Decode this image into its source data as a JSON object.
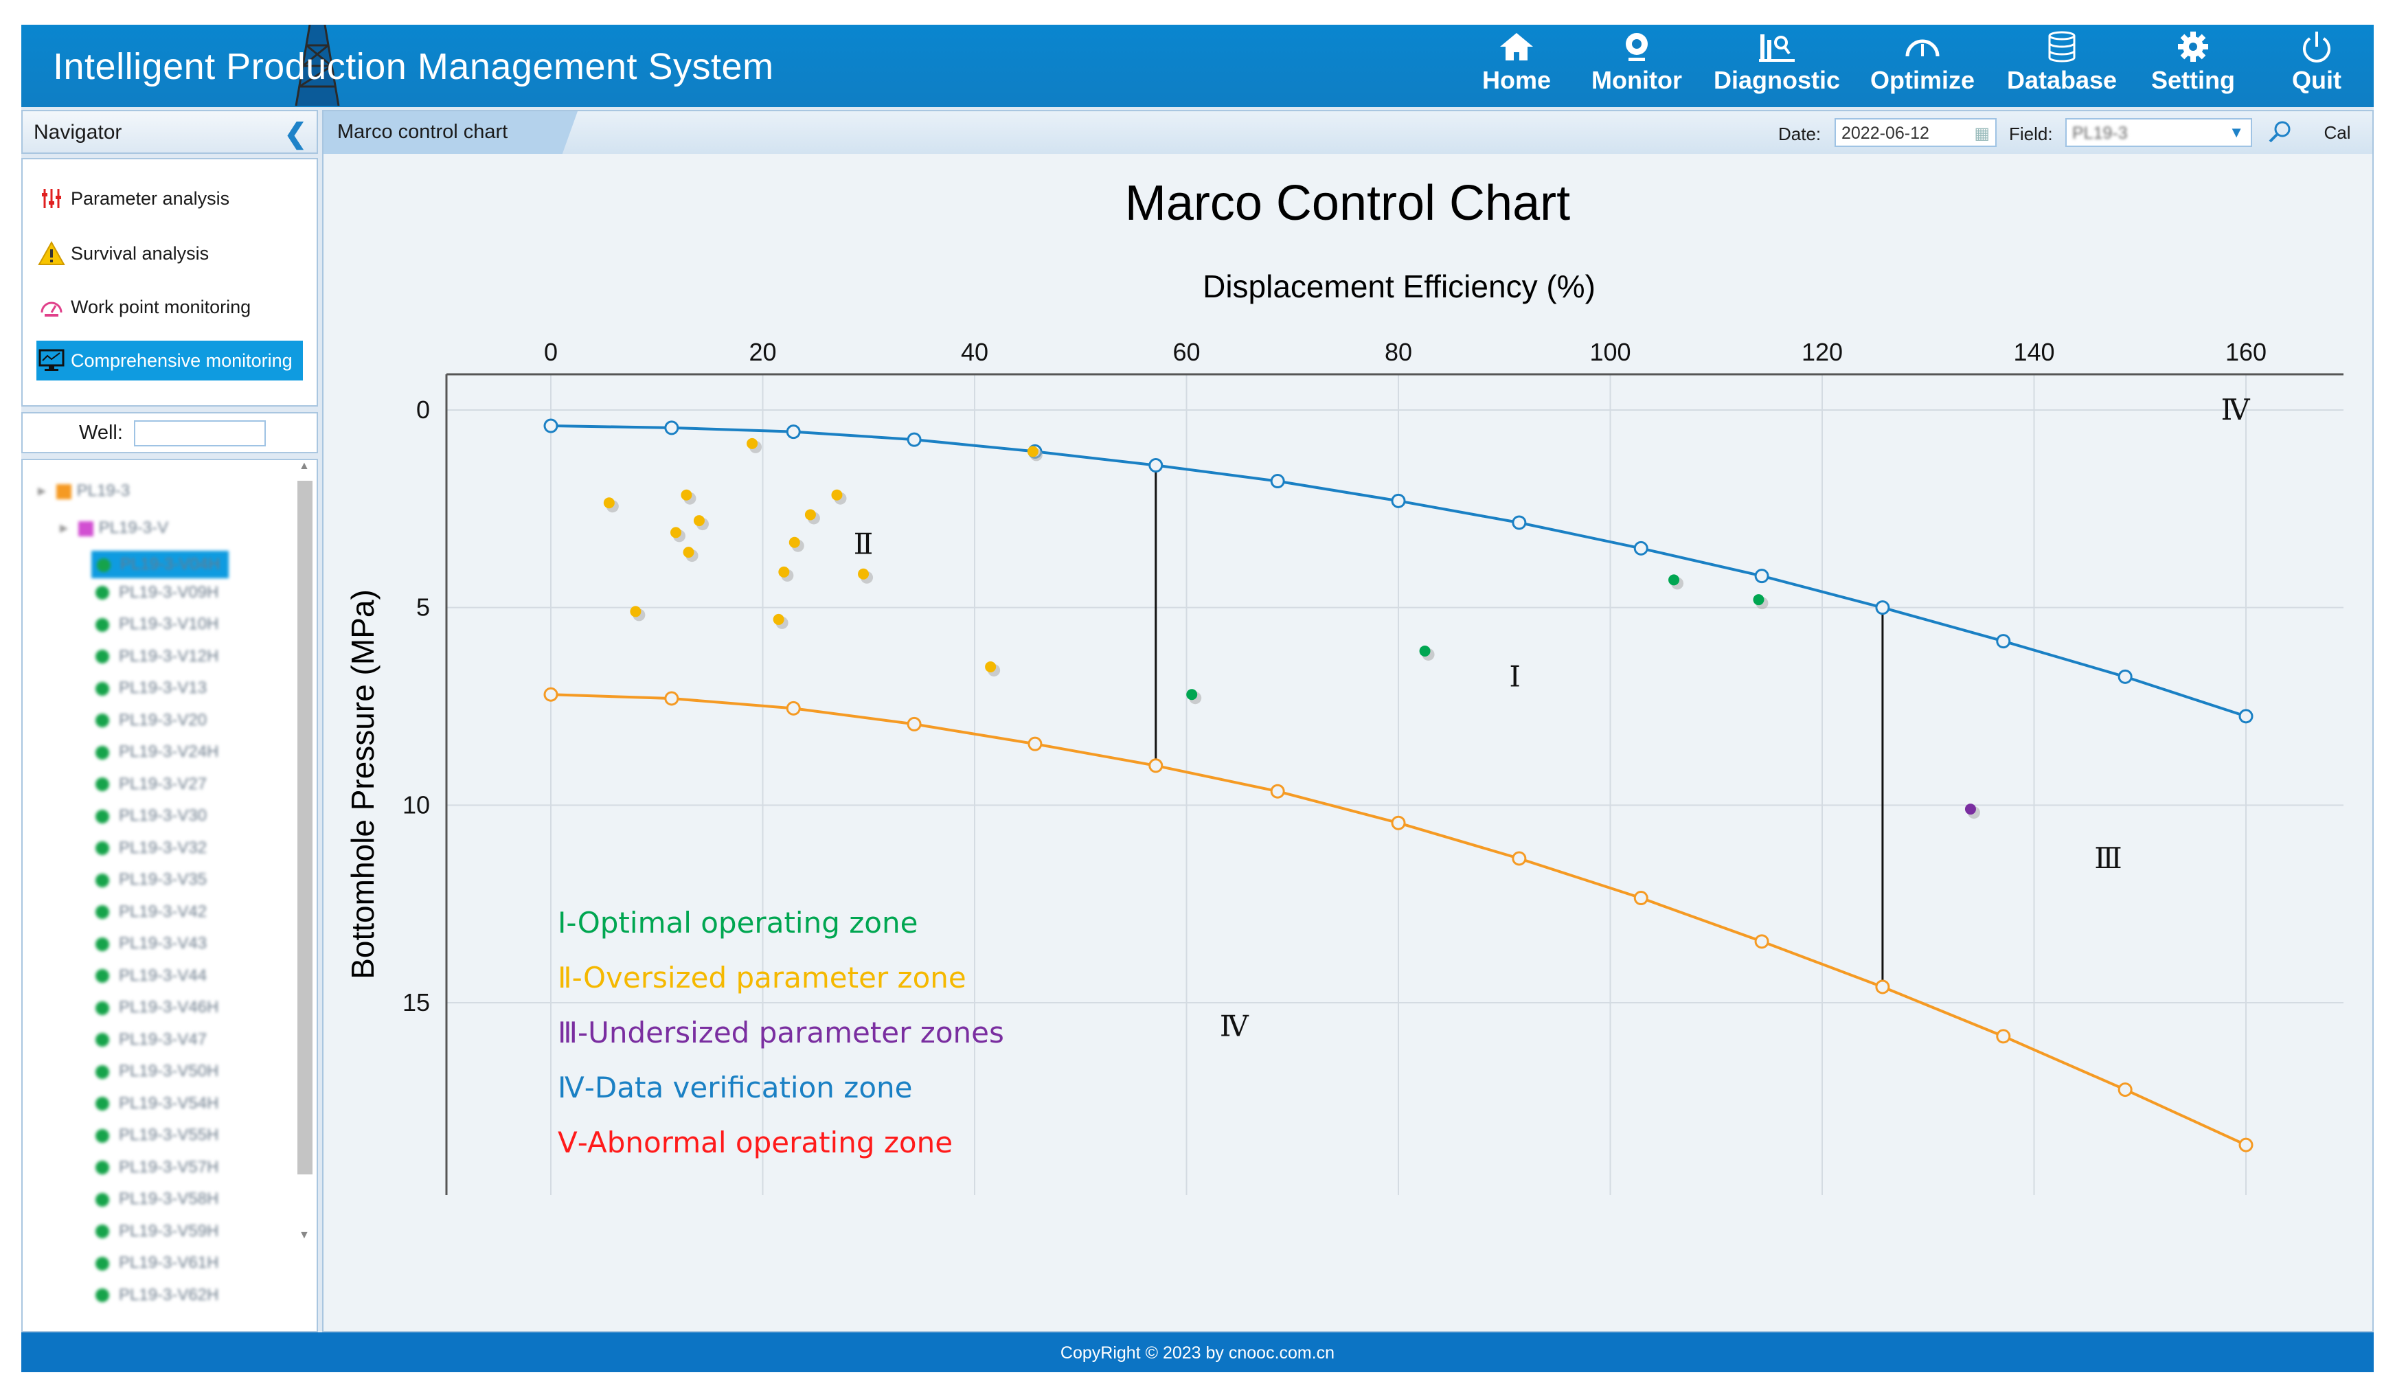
{
  "app": {
    "title": "Intelligent Production Management System"
  },
  "nav": [
    {
      "label": "Home",
      "icon": "home-icon"
    },
    {
      "label": "Monitor",
      "icon": "camera-icon"
    },
    {
      "label": "Diagnostic",
      "icon": "diagnostic-icon"
    },
    {
      "label": "Optimize",
      "icon": "gauge-icon"
    },
    {
      "label": "Database",
      "icon": "database-icon"
    },
    {
      "label": "Setting",
      "icon": "gear-icon"
    },
    {
      "label": "Quit",
      "icon": "power-icon"
    }
  ],
  "sidebar": {
    "title": "Navigator",
    "menu": [
      {
        "label": "Parameter analysis",
        "icon": "parameter-icon"
      },
      {
        "label": "Survival analysis",
        "icon": "warning-icon"
      },
      {
        "label": "Work point monitoring",
        "icon": "gauge-icon"
      },
      {
        "label": "Comprehensive monitoring",
        "icon": "monitor-icon",
        "active": true
      }
    ],
    "well_label": "Well:",
    "well_value": "",
    "tree": {
      "root": "PL19-3",
      "group": "PL19-3-V",
      "selected": "PL19-3-V04H",
      "wells": [
        "PL19-3-V04H",
        "PL19-3-V09H",
        "PL19-3-V10H",
        "PL19-3-V12H",
        "PL19-3-V13",
        "PL19-3-V20",
        "PL19-3-V24H",
        "PL19-3-V27",
        "PL19-3-V30",
        "PL19-3-V32",
        "PL19-3-V35",
        "PL19-3-V42",
        "PL19-3-V43",
        "PL19-3-V44",
        "PL19-3-V46H",
        "PL19-3-V47",
        "PL19-3-V50H",
        "PL19-3-V54H",
        "PL19-3-V55H",
        "PL19-3-V57H",
        "PL19-3-V58H",
        "PL19-3-V59H",
        "PL19-3-V61H",
        "PL19-3-V62H"
      ]
    }
  },
  "toolbar": {
    "tab": "Marco control chart",
    "date_label": "Date:",
    "date_value": "2022-06-12",
    "field_label": "Field:",
    "field_value": "PL19-3",
    "calc_label": "Cal"
  },
  "footer": {
    "text": "CopyRight © 2023 by cnooc.com.cn"
  },
  "colors": {
    "upper": "#1a80c4",
    "lower": "#f59a23",
    "zone1": "#00a651",
    "zone2": "#f5b800",
    "zone3": "#7a2ea0",
    "zone4": "#1a80c4",
    "zone5": "#ff1a1a"
  },
  "chart_data": {
    "type": "scatter",
    "title": "Marco Control Chart",
    "xlabel": "Displacement Efficiency (%)",
    "ylabel": "Bottomhole Pressure (MPa)",
    "x_axis_position": "top",
    "y_inverted": true,
    "xlim": [
      -10,
      170
    ],
    "ylim": [
      0,
      20
    ],
    "xticks": [
      0,
      20,
      40,
      60,
      80,
      100,
      120,
      140,
      160
    ],
    "yticks": [
      0,
      5,
      10,
      15
    ],
    "grid": true,
    "curves": [
      {
        "name": "upper",
        "x": [
          0,
          11.4,
          22.9,
          34.3,
          45.7,
          57.1,
          68.6,
          80,
          91.4,
          102.9,
          114.3,
          125.7,
          137.1,
          148.6,
          160
        ],
        "y": [
          0.4,
          0.45,
          0.55,
          0.75,
          1.05,
          1.4,
          1.8,
          2.3,
          2.85,
          3.5,
          4.2,
          5.0,
          5.85,
          6.75,
          7.75
        ]
      },
      {
        "name": "lower",
        "x": [
          0,
          11.4,
          22.9,
          34.3,
          45.7,
          57.1,
          68.6,
          80,
          91.4,
          102.9,
          114.3,
          125.7,
          137.1,
          148.6,
          160
        ],
        "y": [
          7.2,
          7.3,
          7.55,
          7.95,
          8.45,
          9.0,
          9.65,
          10.45,
          11.35,
          12.35,
          13.45,
          14.6,
          15.85,
          17.2,
          18.6
        ]
      }
    ],
    "boundaries": [
      {
        "x": 57.1,
        "y1": 1.4,
        "y2": 9.0
      },
      {
        "x": 125.7,
        "y1": 5.0,
        "y2": 14.6
      }
    ],
    "points": [
      {
        "zone": "II",
        "x": 5.5,
        "y": 2.35
      },
      {
        "zone": "II",
        "x": 8,
        "y": 5.1
      },
      {
        "zone": "II",
        "x": 11.8,
        "y": 3.1
      },
      {
        "zone": "II",
        "x": 12.8,
        "y": 2.15
      },
      {
        "zone": "II",
        "x": 13,
        "y": 3.6
      },
      {
        "zone": "II",
        "x": 14,
        "y": 2.8
      },
      {
        "zone": "II",
        "x": 19,
        "y": 0.85
      },
      {
        "zone": "II",
        "x": 21.5,
        "y": 5.3
      },
      {
        "zone": "II",
        "x": 22,
        "y": 4.1
      },
      {
        "zone": "II",
        "x": 23,
        "y": 3.35
      },
      {
        "zone": "II",
        "x": 24.5,
        "y": 2.65
      },
      {
        "zone": "II",
        "x": 27,
        "y": 2.15
      },
      {
        "zone": "II",
        "x": 29.5,
        "y": 4.15
      },
      {
        "zone": "II",
        "x": 41.5,
        "y": 6.5
      },
      {
        "zone": "II",
        "x": 45.5,
        "y": 1.05
      },
      {
        "zone": "I",
        "x": 60.5,
        "y": 7.2
      },
      {
        "zone": "I",
        "x": 82.5,
        "y": 6.1
      },
      {
        "zone": "I",
        "x": 106,
        "y": 4.3
      },
      {
        "zone": "I",
        "x": 114,
        "y": 4.8
      },
      {
        "zone": "III",
        "x": 134,
        "y": 10.1
      }
    ],
    "annotations": [
      {
        "text": "Ⅱ",
        "x": 29.5,
        "y": 3.4
      },
      {
        "text": "Ⅰ",
        "x": 91,
        "y": 6.75
      },
      {
        "text": "Ⅲ",
        "x": 147,
        "y": 11.35
      },
      {
        "text": "Ⅳ",
        "x": 64.5,
        "y": 15.6
      },
      {
        "text": "Ⅳ",
        "x": 159,
        "y": 0
      }
    ],
    "legend": [
      {
        "text": "Ⅰ-Optimal operating zone",
        "color": "#00a651"
      },
      {
        "text": "Ⅱ-Oversized parameter zone",
        "color": "#f5b800"
      },
      {
        "text": "Ⅲ-Undersized parameter zones",
        "color": "#7a2ea0"
      },
      {
        "text": "Ⅳ-Data verification zone",
        "color": "#1a80c4"
      },
      {
        "text": "Ⅴ-Abnormal operating zone",
        "color": "#ff1a1a"
      }
    ],
    "legend_position": "bottom-left"
  }
}
